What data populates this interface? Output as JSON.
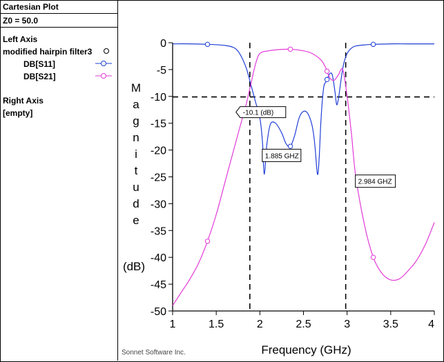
{
  "legend": {
    "title": "Cartesian Plot",
    "z0": "Z0 = 50.0",
    "left_axis_label": "Left Axis",
    "project_name": "modified hairpin filter3",
    "series": [
      {
        "name": "DB[S11]",
        "color": "#1f3fd6"
      },
      {
        "name": "DB[S21]",
        "color": "#e23ad8"
      }
    ],
    "right_axis_label": "Right Axis",
    "right_axis_value": "[empty]"
  },
  "footer": {
    "credit": "Sonnet Software Inc."
  },
  "markers": {
    "level_label": "-10.1  (dB)",
    "f1_label": "1.885 GHZ",
    "f2_label": "2.984 GHZ"
  },
  "chart_data": {
    "type": "line",
    "xlabel": "Frequency (GHz)",
    "ylabel_letters": [
      "M",
      "a",
      "g",
      "n",
      "i",
      "t",
      "u",
      "d",
      "e"
    ],
    "ylabel_unit": "(dB)",
    "xlim": [
      1,
      4
    ],
    "ylim": [
      -50,
      0
    ],
    "xticks": [
      1,
      1.5,
      2,
      2.5,
      3,
      3.5,
      4
    ],
    "xtick_labels": [
      "1",
      "1.5",
      "2",
      "2.5",
      "3",
      "3.5",
      "4"
    ],
    "yticks": [
      0,
      -5,
      -10,
      -15,
      -20,
      -25,
      -30,
      -35,
      -40,
      -45,
      -50
    ],
    "ytick_labels": [
      "0",
      "-5",
      "-10",
      "-15",
      "-20",
      "-25",
      "-30",
      "-35",
      "-40",
      "-45",
      "-50"
    ],
    "grid": false,
    "reference_lines": {
      "level_db": -10.1,
      "f1_ghz": 1.885,
      "f2_ghz": 2.984
    },
    "series": [
      {
        "name": "DB[S11]",
        "color": "#1f3fd6",
        "x": [
          1.0,
          1.2,
          1.4,
          1.6,
          1.7,
          1.75,
          1.8,
          1.85,
          1.9,
          1.95,
          2.0,
          2.03,
          2.05,
          2.08,
          2.12,
          2.18,
          2.25,
          2.3,
          2.35,
          2.4,
          2.45,
          2.5,
          2.55,
          2.6,
          2.63,
          2.66,
          2.68,
          2.7,
          2.73,
          2.76,
          2.8,
          2.83,
          2.86,
          2.88,
          2.9,
          2.93,
          2.96,
          3.0,
          3.05,
          3.1,
          3.2,
          3.3,
          3.5,
          3.7,
          4.0
        ],
        "y": [
          -0.2,
          -0.2,
          -0.3,
          -0.5,
          -0.9,
          -1.6,
          -3.0,
          -5.0,
          -8.0,
          -11.0,
          -14.0,
          -18.5,
          -24.5,
          -19.0,
          -15.2,
          -15.0,
          -16.8,
          -18.8,
          -19.3,
          -17.2,
          -14.0,
          -12.8,
          -13.2,
          -15.5,
          -19.0,
          -24.5,
          -21.5,
          -14.5,
          -8.5,
          -7.2,
          -5.8,
          -6.0,
          -9.0,
          -11.5,
          -10.5,
          -7.0,
          -4.0,
          -2.0,
          -1.0,
          -0.6,
          -0.4,
          -0.3,
          -0.2,
          -0.2,
          -0.2
        ],
        "markers_at": [
          1.4,
          2.35,
          2.77,
          3.3
        ]
      },
      {
        "name": "DB[S21]",
        "color": "#e23ad8",
        "x": [
          1.0,
          1.1,
          1.2,
          1.3,
          1.4,
          1.5,
          1.6,
          1.7,
          1.8,
          1.85,
          1.9,
          1.95,
          2.0,
          2.1,
          2.2,
          2.35,
          2.5,
          2.6,
          2.7,
          2.75,
          2.8,
          2.85,
          2.9,
          2.95,
          3.0,
          3.05,
          3.1,
          3.2,
          3.3,
          3.4,
          3.5,
          3.6,
          3.7,
          3.8,
          3.9,
          4.0
        ],
        "y": [
          -49.0,
          -46.5,
          -44.0,
          -41.0,
          -37.0,
          -32.0,
          -26.0,
          -20.0,
          -14.0,
          -11.0,
          -7.5,
          -4.0,
          -2.0,
          -1.5,
          -1.3,
          -1.2,
          -1.5,
          -2.0,
          -3.2,
          -4.5,
          -6.5,
          -7.0,
          -6.0,
          -5.0,
          -10.0,
          -17.0,
          -25.0,
          -34.0,
          -40.0,
          -43.0,
          -44.2,
          -44.0,
          -42.5,
          -40.5,
          -37.5,
          -33.5
        ],
        "markers_at": [
          1.4,
          2.35,
          2.77,
          3.3
        ]
      }
    ]
  }
}
